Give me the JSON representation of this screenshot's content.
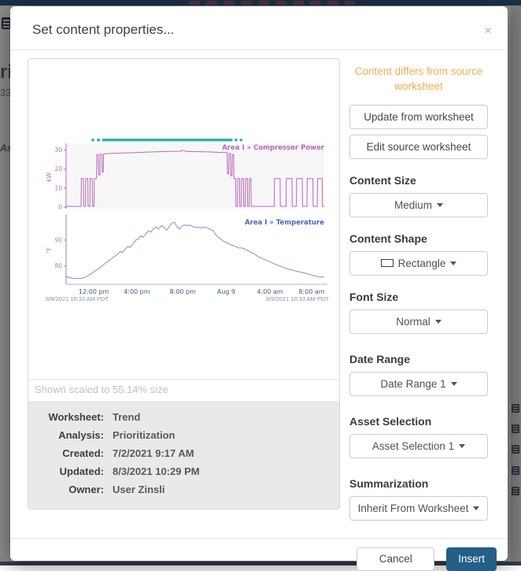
{
  "backdrop": {
    "fragments": {
      "heading": "ri",
      "number": "33",
      "assets": "As"
    }
  },
  "modal": {
    "title": "Set content properties...",
    "close_label": "×",
    "preview": {
      "scale_note": "Shown scaled to 55.14% size",
      "meta": [
        {
          "label": "Worksheet:",
          "value": "Trend"
        },
        {
          "label": "Analysis:",
          "value": "Prioritization"
        },
        {
          "label": "Created:",
          "value": "7/2/2021 9:17 AM"
        },
        {
          "label": "Updated:",
          "value": "8/3/2021 10:29 PM"
        },
        {
          "label": "Owner:",
          "value": "User Zinsli"
        }
      ]
    },
    "options": {
      "warning": "Content differs from source worksheet",
      "update_button": "Update from worksheet",
      "edit_button": "Edit source worksheet",
      "fields": [
        {
          "label": "Content Size",
          "value": "Medium"
        },
        {
          "label": "Content Shape",
          "value": "Rectangle"
        },
        {
          "label": "Font Size",
          "value": "Normal"
        },
        {
          "label": "Date Range",
          "value": "Date Range 1"
        },
        {
          "label": "Asset Selection",
          "value": "Asset Selection 1"
        },
        {
          "label": "Summarization",
          "value": "Inherit From Worksheet"
        }
      ]
    },
    "footer": {
      "cancel": "Cancel",
      "insert": "Insert"
    },
    "colors": {
      "warning_orange": "#f0ad4e",
      "insert_blue": "#245f87",
      "power_purple": "#b869b8",
      "capsule_teal": "#31b5a2",
      "temp_blue": "#8490c8"
    }
  },
  "chart_data": [
    {
      "type": "line",
      "title": "Area I » Compressor Power",
      "ylabel": "kW",
      "yticks": [
        0,
        10,
        20,
        30
      ],
      "ylim": [
        0,
        31.5
      ],
      "color": "#b869b8",
      "capsule_color": "#31b5a2",
      "capsule_segments": [
        [
          9.8,
          1.1
        ],
        [
          11.9,
          1.3
        ],
        [
          13.9,
          50.6
        ],
        [
          65.3,
          1.1
        ],
        [
          67.2,
          1.1
        ]
      ],
      "points": [
        [
          0,
          0.4
        ],
        [
          5.8,
          0.4
        ],
        [
          5.9,
          15
        ],
        [
          6.7,
          15
        ],
        [
          6.8,
          0.4
        ],
        [
          7.5,
          0.4
        ],
        [
          7.6,
          15
        ],
        [
          8.4,
          15
        ],
        [
          8.5,
          0.4
        ],
        [
          9.2,
          0.4
        ],
        [
          9.3,
          15
        ],
        [
          10.1,
          15
        ],
        [
          10.2,
          0.4
        ],
        [
          10.8,
          0.4
        ],
        [
          10.9,
          15
        ],
        [
          11.8,
          15
        ],
        [
          11.9,
          27.6
        ],
        [
          12.5,
          27.6
        ],
        [
          12.6,
          17
        ],
        [
          13.1,
          17
        ],
        [
          13.2,
          27.8
        ],
        [
          13.9,
          27.8
        ],
        [
          14,
          18.5
        ],
        [
          14.4,
          18.5
        ],
        [
          14.5,
          28
        ],
        [
          16,
          28.2
        ],
        [
          20,
          28.4
        ],
        [
          25,
          28.6
        ],
        [
          30,
          28.9
        ],
        [
          35,
          29.1
        ],
        [
          40,
          29.3
        ],
        [
          44,
          29.4
        ],
        [
          45.5,
          29.9
        ],
        [
          46.5,
          29.3
        ],
        [
          50,
          29.2
        ],
        [
          54,
          29.1
        ],
        [
          58,
          28.9
        ],
        [
          61,
          28.7
        ],
        [
          62.4,
          28.6
        ],
        [
          62.5,
          17.5
        ],
        [
          63,
          17.5
        ],
        [
          63.1,
          28.2
        ],
        [
          63.7,
          28.2
        ],
        [
          63.8,
          16.5
        ],
        [
          64.3,
          16.5
        ],
        [
          64.4,
          27.6
        ],
        [
          64.9,
          27.6
        ],
        [
          65,
          15
        ],
        [
          65.7,
          15
        ],
        [
          65.8,
          0.4
        ],
        [
          66.4,
          0.4
        ],
        [
          66.5,
          15
        ],
        [
          67.2,
          15
        ],
        [
          67.3,
          0.4
        ],
        [
          67.9,
          0.4
        ],
        [
          68,
          15
        ],
        [
          68.7,
          15
        ],
        [
          68.8,
          0.4
        ],
        [
          69.4,
          0.4
        ],
        [
          69.5,
          15
        ],
        [
          70.2,
          15
        ],
        [
          70.3,
          0.4
        ],
        [
          70.9,
          0.4
        ],
        [
          71,
          15
        ],
        [
          71.6,
          15
        ],
        [
          71.7,
          0.4
        ],
        [
          80.6,
          0.4
        ],
        [
          80.7,
          15
        ],
        [
          82.9,
          15
        ],
        [
          83,
          0.4
        ],
        [
          85.2,
          0.4
        ],
        [
          85.3,
          15
        ],
        [
          87.5,
          15
        ],
        [
          87.6,
          0.4
        ],
        [
          89.2,
          0.4
        ],
        [
          89.3,
          15
        ],
        [
          91.5,
          15
        ],
        [
          91.6,
          0.4
        ],
        [
          93.3,
          0.4
        ],
        [
          93.4,
          15
        ],
        [
          95.6,
          15
        ],
        [
          95.7,
          0.4
        ],
        [
          97.3,
          0.4
        ],
        [
          97.4,
          15
        ],
        [
          99.2,
          15
        ],
        [
          99.3,
          0.4
        ],
        [
          100,
          0.4
        ]
      ]
    },
    {
      "type": "line",
      "title": "Area I » Temperature",
      "title_color": "#4a66b4",
      "ylabel": "°F",
      "yticks": [
        80,
        90
      ],
      "ylim": [
        73.5,
        98.5
      ],
      "color": "#8490c8",
      "xaxis": true,
      "xticks": [
        {
          "pos": 10.7,
          "label": "12:00 pm"
        },
        {
          "pos": 27.4,
          "label": "4:00 pm"
        },
        {
          "pos": 45.2,
          "label": "8:00 pm"
        },
        {
          "pos": 62.0,
          "label": "Aug 9"
        },
        {
          "pos": 79.0,
          "label": "4:00 am"
        },
        {
          "pos": 95.1,
          "label": "8:00 am"
        }
      ],
      "footnotes": [
        "8/8/2021 10:33 AM PDT",
        "8/9/2021 10:33 AM PDT"
      ],
      "points": [
        [
          0,
          75.9
        ],
        [
          2,
          75.3
        ],
        [
          4,
          75.1
        ],
        [
          6,
          75.2
        ],
        [
          8,
          75.9
        ],
        [
          10,
          77.2
        ],
        [
          12,
          78.6
        ],
        [
          14,
          80.1
        ],
        [
          16,
          81.6
        ],
        [
          18,
          83.1
        ],
        [
          20,
          84.6
        ],
        [
          21,
          85.6
        ],
        [
          21.8,
          85.2
        ],
        [
          23,
          86.6
        ],
        [
          24,
          87.6
        ],
        [
          24.8,
          87.2
        ],
        [
          26,
          88.6
        ],
        [
          27,
          90.1
        ],
        [
          28,
          90.4
        ],
        [
          29,
          91.6
        ],
        [
          29.8,
          91.1
        ],
        [
          31,
          92.6
        ],
        [
          32,
          93.6
        ],
        [
          32.8,
          93.1
        ],
        [
          34,
          94.6
        ],
        [
          35,
          95.1
        ],
        [
          35.8,
          94.3
        ],
        [
          37,
          95.6
        ],
        [
          38,
          94.9
        ],
        [
          39,
          93.9
        ],
        [
          40,
          95.3
        ],
        [
          41,
          96.6
        ],
        [
          42,
          96.9
        ],
        [
          43,
          95.1
        ],
        [
          44,
          94.3
        ],
        [
          45,
          95.6
        ],
        [
          46,
          95.9
        ],
        [
          47,
          95.6
        ],
        [
          48,
          95.8
        ],
        [
          49,
          95.3
        ],
        [
          50,
          94.9
        ],
        [
          51,
          95.1
        ],
        [
          52,
          94.7
        ],
        [
          53,
          95.1
        ],
        [
          54,
          94.9
        ],
        [
          55,
          94.6
        ],
        [
          56,
          94.1
        ],
        [
          57,
          93.6
        ],
        [
          58,
          92.1
        ],
        [
          59,
          91.1
        ],
        [
          60,
          90.3
        ],
        [
          61,
          89.6
        ],
        [
          62,
          89.1
        ],
        [
          63,
          88.6
        ],
        [
          64,
          88.1
        ],
        [
          65,
          87.9
        ],
        [
          66,
          87.3
        ],
        [
          67,
          86.9
        ],
        [
          68,
          87
        ],
        [
          69,
          86.6
        ],
        [
          70,
          86.1
        ],
        [
          71,
          85.6
        ],
        [
          72,
          85.1
        ],
        [
          73,
          84.6
        ],
        [
          74,
          83.9
        ],
        [
          75,
          83.3
        ],
        [
          76,
          82.9
        ],
        [
          77,
          82.4
        ],
        [
          78,
          82.1
        ],
        [
          79,
          81.6
        ],
        [
          80,
          81.1
        ],
        [
          81,
          80.6
        ],
        [
          82,
          80.3
        ],
        [
          83,
          79.9
        ],
        [
          84,
          79.5
        ],
        [
          85,
          79.1
        ],
        [
          86,
          78.8
        ],
        [
          87,
          78.5
        ],
        [
          88,
          78.3
        ],
        [
          89,
          78
        ],
        [
          90,
          77.8
        ],
        [
          91,
          77.6
        ],
        [
          92,
          77.3
        ],
        [
          93,
          77.1
        ],
        [
          94,
          76.8
        ],
        [
          95,
          76.5
        ],
        [
          96,
          76.2
        ],
        [
          97,
          76
        ],
        [
          98,
          75.8
        ],
        [
          99,
          75.7
        ],
        [
          100,
          75.7
        ]
      ]
    }
  ]
}
